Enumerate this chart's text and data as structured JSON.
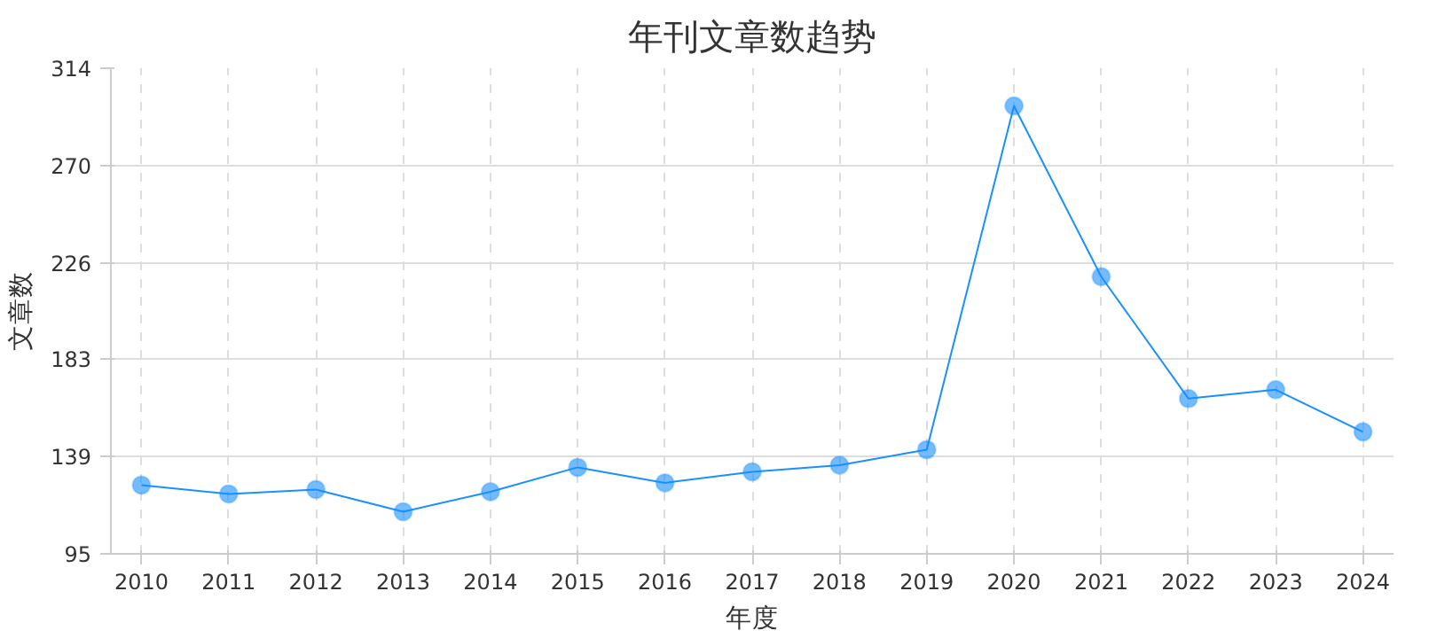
{
  "chart_data": {
    "type": "line",
    "title": "年刊文章数趋势",
    "xlabel": "年度",
    "ylabel": "文章数",
    "categories": [
      "2010",
      "2011",
      "2012",
      "2013",
      "2014",
      "2015",
      "2016",
      "2017",
      "2018",
      "2019",
      "2020",
      "2021",
      "2022",
      "2023",
      "2024"
    ],
    "series": [
      {
        "color": "#1890ff",
        "values": [
          126,
          122,
          124,
          114,
          123,
          134,
          127,
          132,
          135,
          142,
          297,
          220,
          165,
          169,
          150
        ]
      }
    ],
    "ylim": [
      95,
      314
    ],
    "yticks": [
      95,
      139,
      183,
      226,
      270,
      314
    ],
    "grid": true,
    "marker": "circle",
    "line_style": "solid"
  }
}
